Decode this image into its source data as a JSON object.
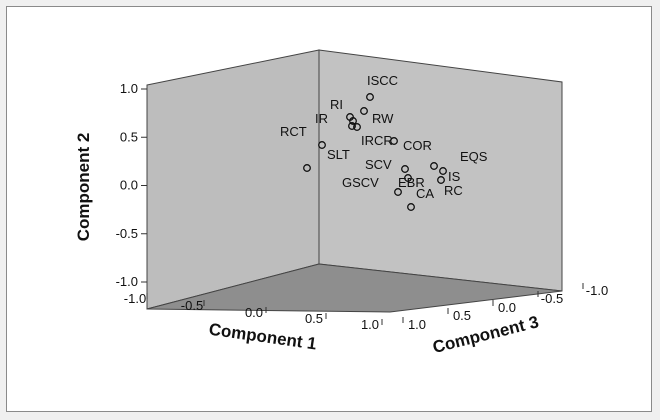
{
  "chart_data": {
    "type": "scatter",
    "subtype": "3d-scatter",
    "axes": {
      "x": {
        "label": "Component 1",
        "range": [
          -1.0,
          1.0
        ],
        "ticks": [
          "-1.0",
          "-0.5",
          "0.0",
          "0.5",
          "1.0"
        ]
      },
      "y": {
        "label": "Component 2",
        "range": [
          -1.0,
          1.0
        ],
        "ticks": [
          "1.0",
          "0.5",
          "0.0",
          "-0.5",
          "-1.0"
        ]
      },
      "z": {
        "label": "Component 3",
        "range": [
          -1.0,
          1.0
        ],
        "ticks": [
          "1.0",
          "0.5",
          "0.0",
          "-0.5",
          "-1.0"
        ]
      }
    },
    "points": [
      {
        "label": "ISCC"
      },
      {
        "label": "RI"
      },
      {
        "label": "RW"
      },
      {
        "label": "IR"
      },
      {
        "label": "RCT"
      },
      {
        "label": "IRCR"
      },
      {
        "label": "COR"
      },
      {
        "label": "SLT"
      },
      {
        "label": "EQS"
      },
      {
        "label": "SCV"
      },
      {
        "label": "IS"
      },
      {
        "label": "GSCV"
      },
      {
        "label": "EBR"
      },
      {
        "label": "RC"
      },
      {
        "label": "CA"
      }
    ],
    "colors": {
      "back_wall": "#c2c2c2",
      "floor": "#8e8e8e",
      "side_wall": "#bdbdbd"
    }
  }
}
